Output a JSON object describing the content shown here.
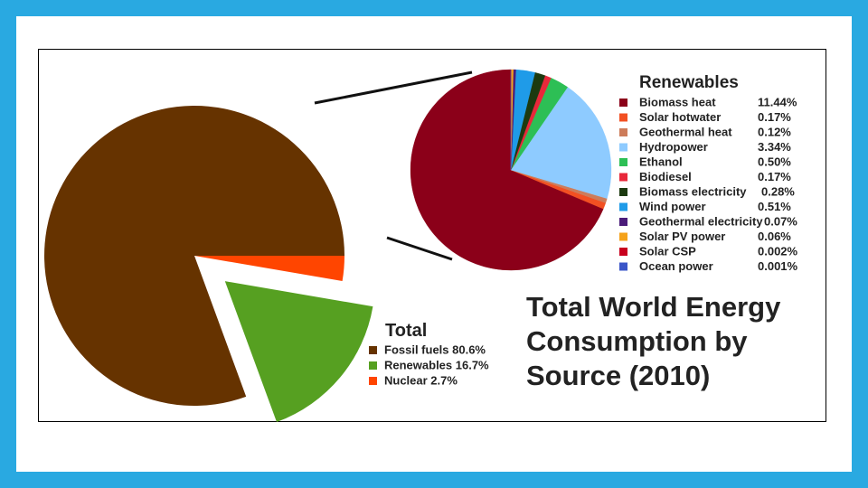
{
  "chart_data": [
    {
      "type": "pie",
      "title": "Total World Energy Consumption by Source (2010)",
      "title_lines": [
        "Total World Energy",
        "Consumption by",
        "Source (2010)"
      ],
      "legend_title": "Total",
      "legend_placement": "bottom-center",
      "slices": [
        {
          "label": "Fossil fuels",
          "value": 80.6,
          "display": "Fossil fuels 80.6%",
          "color": "#663300"
        },
        {
          "label": "Renewables",
          "value": 16.7,
          "display": "Renewables 16.7%",
          "color": "#56a021"
        },
        {
          "label": "Nuclear",
          "value": 2.7,
          "display": "Nuclear 2.7%",
          "color": "#ff4500"
        }
      ]
    },
    {
      "type": "pie",
      "title": "Renewables",
      "legend_placement": "right",
      "slices": [
        {
          "label": "Biomass heat",
          "value": 11.44,
          "display": "11.44%",
          "color": "#8b0019"
        },
        {
          "label": "Solar hotwater",
          "value": 0.17,
          "display": "0.17%",
          "color": "#f25022"
        },
        {
          "label": "Geothermal heat",
          "value": 0.12,
          "display": "0.12%",
          "color": "#cd7c5a"
        },
        {
          "label": "Hydropower",
          "value": 3.34,
          "display": "3.34%",
          "color": "#8ecbff"
        },
        {
          "label": "Ethanol",
          "value": 0.5,
          "display": "0.50%",
          "color": "#2dbf55"
        },
        {
          "label": "Biodiesel",
          "value": 0.17,
          "display": "0.17%",
          "color": "#e8283a"
        },
        {
          "label": "Biomass electricity",
          "value": 0.28,
          "display": "0.28%",
          "color": "#1c3a10"
        },
        {
          "label": "Wind power",
          "value": 0.51,
          "display": "0.51%",
          "color": "#1f9be8"
        },
        {
          "label": "Geothermal electricity",
          "value": 0.07,
          "display": "0.07%",
          "color": "#4b1c7a"
        },
        {
          "label": "Solar PV power",
          "value": 0.06,
          "display": "0.06%",
          "color": "#f5a21a"
        },
        {
          "label": "Solar CSP",
          "value": 0.002,
          "display": "0.002%",
          "color": "#c8001e"
        },
        {
          "label": "Ocean power",
          "value": 0.001,
          "display": "0.001%",
          "color": "#3a55c8"
        }
      ]
    }
  ]
}
